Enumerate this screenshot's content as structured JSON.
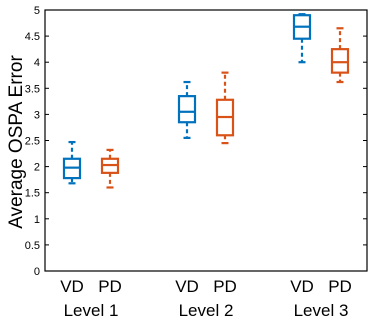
{
  "chart_data": {
    "type": "box",
    "ylabel": "Average OSPA Error",
    "ylim": [
      0,
      5
    ],
    "yticks": [
      "0",
      "0.5",
      "1",
      "1.5",
      "2",
      "2.5",
      "3",
      "3.5",
      "4",
      "4.5",
      "5"
    ],
    "groups": [
      {
        "label": "Level 1",
        "boxes": [
          {
            "name": "VD",
            "color": "#0072BD",
            "min": 1.68,
            "q1": 1.78,
            "median": 1.98,
            "q3": 2.15,
            "max": 2.47
          },
          {
            "name": "PD",
            "color": "#D95319",
            "min": 1.6,
            "q1": 1.88,
            "median": 2.03,
            "q3": 2.15,
            "max": 2.32
          }
        ]
      },
      {
        "label": "Level 2",
        "boxes": [
          {
            "name": "VD",
            "color": "#0072BD",
            "min": 2.55,
            "q1": 2.85,
            "median": 3.05,
            "q3": 3.35,
            "max": 3.62
          },
          {
            "name": "PD",
            "color": "#D95319",
            "min": 2.45,
            "q1": 2.6,
            "median": 2.95,
            "q3": 3.28,
            "max": 3.8
          }
        ]
      },
      {
        "label": "Level 3",
        "boxes": [
          {
            "name": "VD",
            "color": "#0072BD",
            "min": 4.0,
            "q1": 4.45,
            "median": 4.68,
            "q3": 4.9,
            "max": 4.92
          },
          {
            "name": "PD",
            "color": "#D95319",
            "min": 3.62,
            "q1": 3.8,
            "median": 4.0,
            "q3": 4.25,
            "max": 4.65
          }
        ]
      }
    ]
  }
}
